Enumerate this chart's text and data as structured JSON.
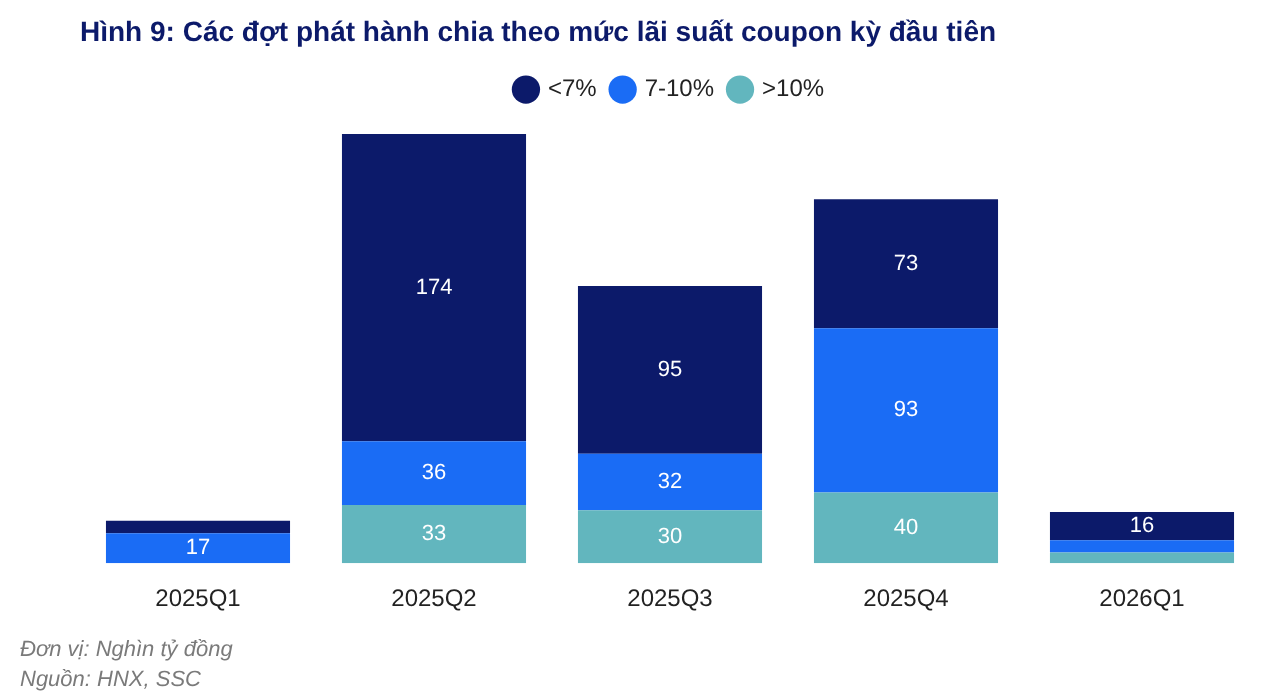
{
  "chart_data": {
    "type": "bar",
    "stacked": true,
    "title": "Hình 9: Các đợt phát hành chia theo mức lãi suất coupon kỳ đầu tiên",
    "categories": [
      "2025Q1",
      "2025Q2",
      "2025Q3",
      "2025Q4",
      "2026Q1"
    ],
    "series": [
      {
        "name": ">10%",
        "color": "#62b6be",
        "values": [
          0,
          33,
          30,
          40,
          6
        ],
        "value_labels": [
          null,
          "33",
          "30",
          "40",
          null
        ]
      },
      {
        "name": "7-10%",
        "color": "#1a6cf5",
        "values": [
          17,
          36,
          32,
          93,
          7
        ],
        "value_labels": [
          "17",
          "36",
          "32",
          "93",
          null
        ]
      },
      {
        "name": "<7%",
        "color": "#0c1a6a",
        "values": [
          7,
          174,
          95,
          73,
          16
        ],
        "value_labels": [
          null,
          "174",
          "95",
          "73",
          "16"
        ]
      }
    ],
    "legend": "top",
    "grid": false,
    "annotations": [
      "Đơn vị: Nghìn tỷ đồng",
      "Nguồn: HNX, SSC"
    ]
  }
}
